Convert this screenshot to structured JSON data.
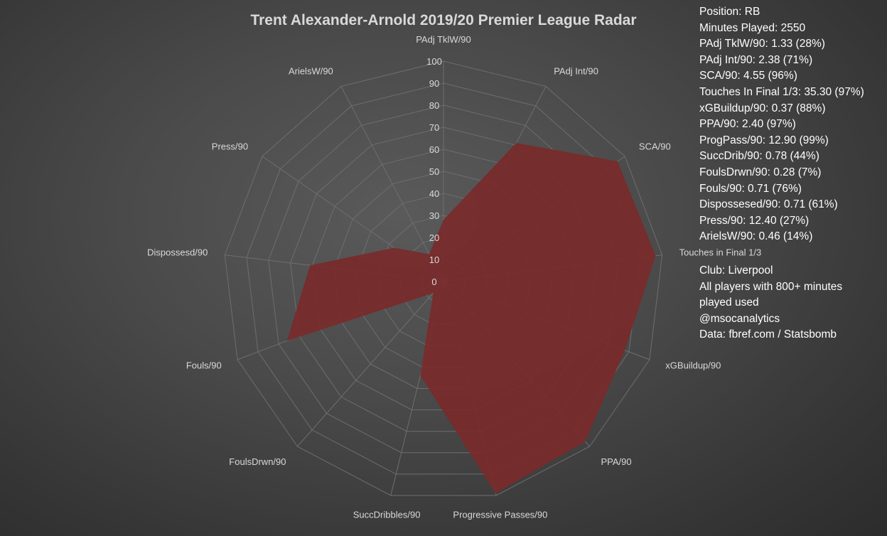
{
  "chart_data": {
    "type": "radar",
    "title": "Trent Alexander-Arnold 2019/20 Premier League Radar",
    "categories": [
      "PAdj TklW/90",
      "PAdj Int/90",
      "SCA/90",
      "Touches in Final 1/3",
      "xGBuildup/90",
      "PPA/90",
      "Progressive Passes/90",
      "SuccDribbles/90",
      "FoulsDrwn/90",
      "Fouls/90",
      "Dispossesd/90",
      "Press/90",
      "ArielsW/90"
    ],
    "series": [
      {
        "values": [
          28,
          71,
          96,
          97,
          88,
          97,
          99,
          44,
          7,
          76,
          61,
          27,
          14
        ]
      }
    ],
    "rlim": [
      0,
      100
    ],
    "ticks": [
      "0",
      "10",
      "20",
      "30",
      "40",
      "50",
      "60",
      "70",
      "80",
      "90",
      "100"
    ],
    "fill_color": "#7a2a2a",
    "fill_opacity": 0.92,
    "grid_color": "#6e6e6e",
    "text_color": "#d9d9d9"
  },
  "info": {
    "lines": [
      "Position: RB",
      "Minutes Played: 2550",
      "PAdj TklW/90: 1.33 (28%)",
      "PAdj Int/90: 2.38 (71%)",
      "SCA/90: 4.55 (96%)",
      "Touches In Final 1/3: 35.30 (97%)",
      "xGBuildup/90: 0.37 (88%)",
      "PPA/90: 2.40 (97%)",
      "ProgPass/90: 12.90 (99%)",
      "SuccDrib/90: 0.78 (44%)",
      "FoulsDrwn/90: 0.28 (7%)",
      "Fouls/90: 0.71 (76%)",
      "Dispossesed/90: 0.71 (61%)",
      "Press/90: 12.40 (27%)",
      "ArielsW/90: 0.46 (14%)"
    ]
  },
  "notes": {
    "lines": [
      "Club: Liverpool",
      "All players with 800+ minutes",
      "played used",
      "@msocanalytics",
      "Data: fbref.com / Statsbomb"
    ]
  }
}
